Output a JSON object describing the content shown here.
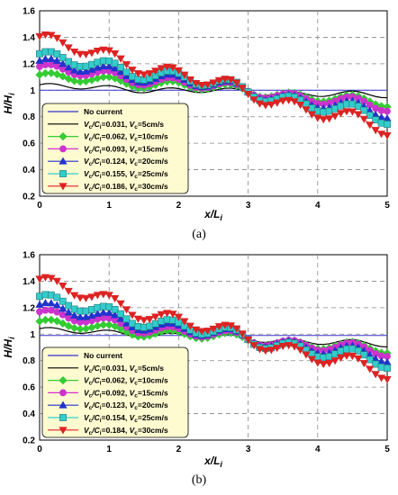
{
  "chart_data": [
    {
      "type": "line",
      "caption": "(a)",
      "xlabel": "x/L",
      "xlabel_sub": "i",
      "ylabel": "H/H",
      "ylabel_sub": "i",
      "xlim": [
        0,
        5
      ],
      "ylim": [
        0.2,
        1.6
      ],
      "xticks": [
        "0",
        "1",
        "2",
        "3",
        "4",
        "5"
      ],
      "yticks": [
        "0.2",
        "0.4",
        "0.6",
        "0.8",
        "1",
        "1.2",
        "1.4",
        "1.6"
      ],
      "grid": "dashed",
      "legend_position": "bottom-left",
      "series": [
        {
          "name": "No current",
          "color": "#3333cc",
          "marker": "none",
          "start": 1.0,
          "end": 1.0,
          "mid": 1.0,
          "amp": 0
        },
        {
          "name_parts": [
            "V",
            "c",
            "/C",
            "i",
            "=0.031, ",
            "V",
            "c",
            "=5cm/s"
          ],
          "color": "#000000",
          "marker": "none",
          "start": 1.03,
          "mid": 1.0,
          "end": 0.96,
          "amp": 0.02
        },
        {
          "name_parts": [
            "V",
            "c",
            "/C",
            "i",
            "=0.062, ",
            "V",
            "c",
            "=10cm/s"
          ],
          "color": "#33cc33",
          "marker": "diamond",
          "start": 1.1,
          "mid": 1.04,
          "end": 0.9,
          "amp": 0.03
        },
        {
          "name_parts": [
            "V",
            "c",
            "/C",
            "i",
            "=0.093, ",
            "V",
            "c",
            "=15cm/s"
          ],
          "color": "#cc33cc",
          "marker": "circle",
          "start": 1.16,
          "mid": 1.06,
          "end": 0.87,
          "amp": 0.035
        },
        {
          "name_parts": [
            "V",
            "c",
            "/C",
            "i",
            "=0.124, ",
            "V",
            "c",
            "=20cm/s"
          ],
          "color": "#2233cc",
          "marker": "triangle",
          "start": 1.2,
          "mid": 1.08,
          "end": 0.82,
          "amp": 0.04
        },
        {
          "name_parts": [
            "V",
            "c",
            "/C",
            "i",
            "=0.155, ",
            "V",
            "c",
            "=25cm/s"
          ],
          "color": "#33cccc",
          "marker": "square",
          "start": 1.25,
          "mid": 1.1,
          "end": 0.78,
          "amp": 0.045
        },
        {
          "name_parts": [
            "V",
            "c",
            "/C",
            "i",
            "=0.186, ",
            "V",
            "c",
            "=30cm/s"
          ],
          "color": "#dd2222",
          "marker": "triangle-down",
          "start": 1.38,
          "mid": 1.12,
          "end": 0.7,
          "amp": 0.05
        }
      ]
    },
    {
      "type": "line",
      "caption": "(b)",
      "xlabel": "x/L",
      "xlabel_sub": "i",
      "ylabel": "H/H",
      "ylabel_sub": "i",
      "xlim": [
        0,
        5
      ],
      "ylim": [
        0.2,
        1.6
      ],
      "xticks": [
        "0",
        "1",
        "2",
        "3",
        "4",
        "5"
      ],
      "yticks": [
        "0.2",
        "0.4",
        "0.6",
        "0.8",
        "1",
        "1.2",
        "1.4",
        "1.6"
      ],
      "grid": "dashed",
      "legend_position": "bottom-left",
      "series": [
        {
          "name": "No current",
          "color": "#3333cc",
          "marker": "none",
          "start": 0.99,
          "end": 0.99,
          "mid": 0.99,
          "amp": 0
        },
        {
          "name_parts": [
            "V",
            "c",
            "/C",
            "i",
            "=0.031, ",
            "V",
            "c",
            "=5cm/s"
          ],
          "color": "#000000",
          "marker": "none",
          "start": 1.03,
          "mid": 0.99,
          "end": 0.92,
          "amp": 0.02
        },
        {
          "name_parts": [
            "V",
            "c",
            "/C",
            "i",
            "=0.062, ",
            "V",
            "c",
            "=10cm/s"
          ],
          "color": "#33cc33",
          "marker": "diamond",
          "start": 1.08,
          "mid": 1.0,
          "end": 0.88,
          "amp": 0.03
        },
        {
          "name_parts": [
            "V",
            "c",
            "/C",
            "i",
            "=0.092, ",
            "V",
            "c",
            "=15cm/s"
          ],
          "color": "#cc33cc",
          "marker": "circle",
          "start": 1.15,
          "mid": 1.02,
          "end": 0.86,
          "amp": 0.035
        },
        {
          "name_parts": [
            "V",
            "c",
            "/C",
            "i",
            "=0.123, ",
            "V",
            "c",
            "=20cm/s"
          ],
          "color": "#2233cc",
          "marker": "triangle",
          "start": 1.2,
          "mid": 1.04,
          "end": 0.82,
          "amp": 0.04
        },
        {
          "name_parts": [
            "V",
            "c",
            "/C",
            "i",
            "=0.154, ",
            "V",
            "c",
            "=25cm/s"
          ],
          "color": "#33cccc",
          "marker": "square",
          "start": 1.26,
          "mid": 1.06,
          "end": 0.78,
          "amp": 0.045
        },
        {
          "name_parts": [
            "V",
            "c",
            "/C",
            "i",
            "=0.184, ",
            "V",
            "c",
            "=30cm/s"
          ],
          "color": "#dd2222",
          "marker": "triangle-down",
          "start": 1.39,
          "mid": 1.1,
          "end": 0.7,
          "amp": 0.05
        }
      ]
    }
  ]
}
